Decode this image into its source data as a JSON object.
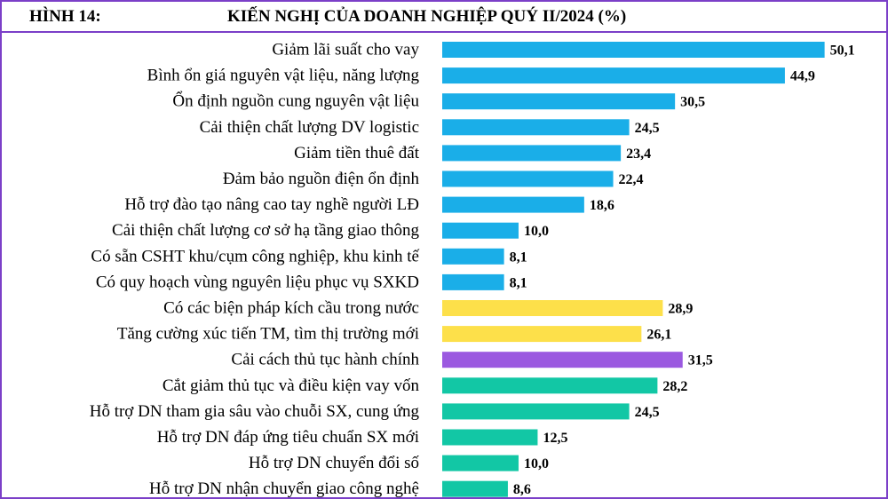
{
  "header": {
    "figure_label": "HÌNH 14:",
    "title": "KIẾN NGHỊ CỦA DOANH NGHIỆP QUÝ II/2024 (%)"
  },
  "chart_data": {
    "type": "bar",
    "orientation": "horizontal",
    "title": "KIẾN NGHỊ CỦA DOANH NGHIỆP QUÝ II/2024 (%)",
    "xlabel": "",
    "ylabel": "",
    "xlim": [
      0,
      55
    ],
    "grid": false,
    "legend": "none",
    "categories": [
      "Giảm lãi suất cho vay",
      "Bình ổn giá nguyên vật liệu, năng lượng",
      "Ổn định nguồn cung nguyên vật liệu",
      "Cải thiện chất lượng DV logistic",
      "Giảm tiền thuê đất",
      "Đảm bảo nguồn điện ổn định",
      "Hỗ trợ đào tạo nâng cao tay nghề người LĐ",
      "Cải thiện chất lượng cơ sở hạ tầng giao thông",
      "Có sẵn CSHT khu/cụm công nghiệp, khu kinh tế",
      "Có quy hoạch vùng nguyên liệu phục vụ SXKD",
      "Có các biện pháp kích cầu trong nước",
      "Tăng cường xúc tiến TM, tìm thị trường mới",
      "Cải cách thủ tục hành chính",
      "Cắt giảm thủ tục và điều kiện vay vốn",
      "Hỗ trợ DN tham gia sâu vào chuỗi SX, cung ứng",
      "Hỗ trợ DN đáp ứng tiêu chuẩn SX mới",
      "Hỗ trợ DN chuyển đổi số",
      "Hỗ trợ DN nhận chuyển giao công nghệ"
    ],
    "values": [
      50.1,
      44.9,
      30.5,
      24.5,
      23.4,
      22.4,
      18.6,
      10.0,
      8.1,
      8.1,
      28.9,
      26.1,
      31.5,
      28.2,
      24.5,
      12.5,
      10.0,
      8.6
    ],
    "value_labels": [
      "50,1",
      "44,9",
      "30,5",
      "24,5",
      "23,4",
      "22,4",
      "18,6",
      "10,0",
      "8,1",
      "8,1",
      "28,9",
      "26,1",
      "31,5",
      "28,2",
      "24,5",
      "12,5",
      "10,0",
      "8,6"
    ],
    "bar_groups": [
      0,
      0,
      0,
      0,
      0,
      0,
      0,
      0,
      0,
      0,
      1,
      1,
      2,
      3,
      3,
      3,
      3,
      3
    ],
    "group_colors": [
      "#1aaee8",
      "#fde04a",
      "#9b59e0",
      "#12c7a5"
    ]
  }
}
